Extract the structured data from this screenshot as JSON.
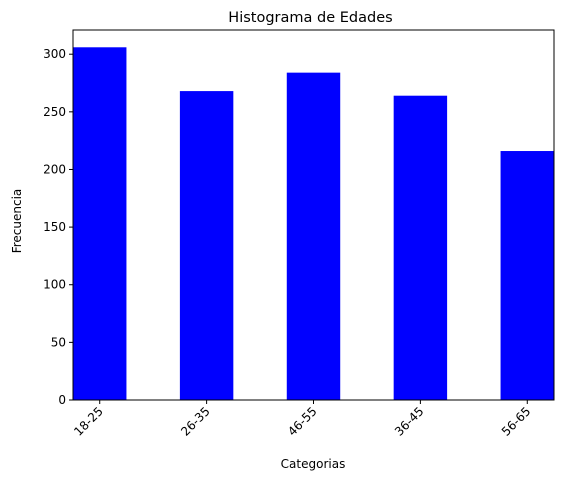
{
  "chart_data": {
    "type": "bar",
    "title": "Histograma de Edades",
    "xlabel": "Categorias",
    "ylabel": "Frecuencia",
    "categories": [
      "18-25",
      "26-35",
      "46-55",
      "36-45",
      "56-65"
    ],
    "values": [
      306,
      268,
      284,
      264,
      216
    ],
    "ylim": [
      0,
      321
    ],
    "yticks": [
      0,
      50,
      100,
      150,
      200,
      250,
      300
    ],
    "bar_color": "#0000ff",
    "grid": false,
    "legend": false
  }
}
